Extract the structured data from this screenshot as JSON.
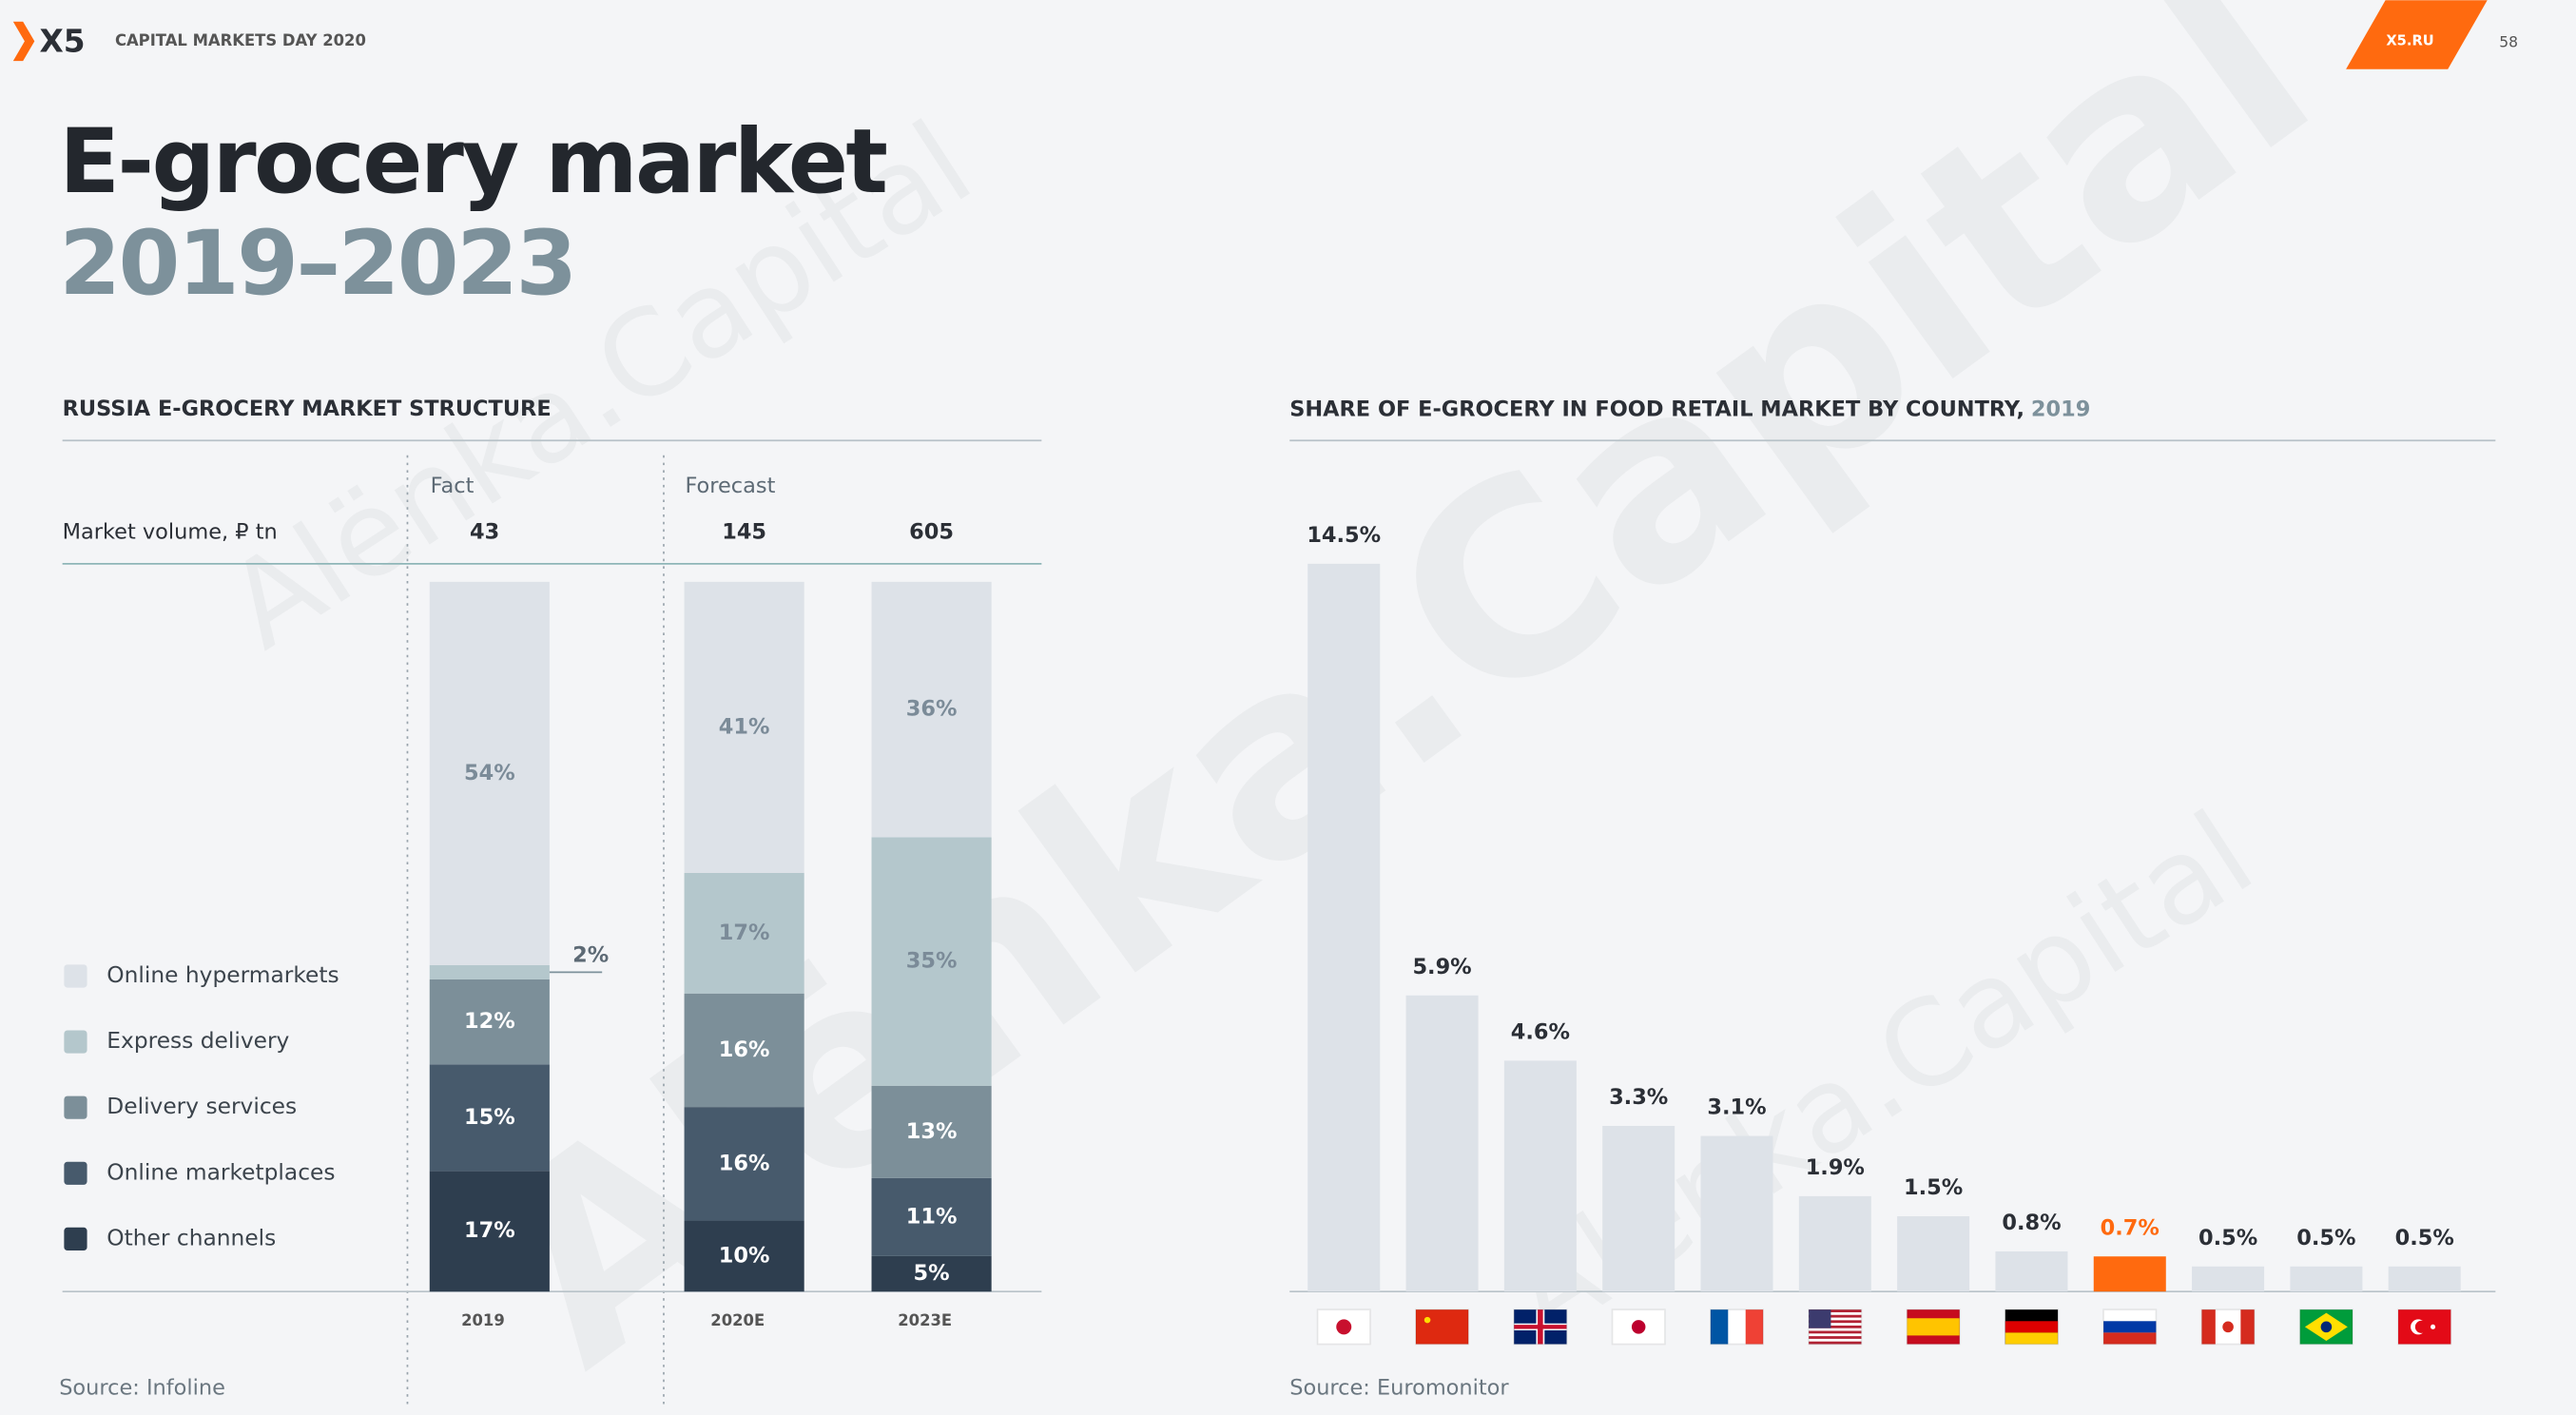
{
  "header": {
    "logo": "X5",
    "event": "CAPITAL MARKETS DAY 2020",
    "site": "X5.RU",
    "page": "58",
    "title": "E-grocery market",
    "subtitle": "2019–2023",
    "watermark": "Alёnka.Capital"
  },
  "chart_data": [
    {
      "type": "stacked_bar",
      "title": "RUSSIA E-GROCERY MARKET STRUCTURE",
      "fact_label": "Fact",
      "forecast_label": "Forecast",
      "volume_label": "Market volume, ₽ tn",
      "volume_values": [
        43,
        145,
        605
      ],
      "categories": [
        "2019",
        "2020E",
        "2023E"
      ],
      "series": [
        {
          "name": "Other channels",
          "color": "#2e3e4f",
          "values": [
            17,
            10,
            5
          ],
          "value_labels": [
            "17%",
            "10%",
            "5%"
          ]
        },
        {
          "name": "Online marketplaces",
          "color": "#475a6c",
          "values": [
            15,
            16,
            11
          ],
          "value_labels": [
            "15%",
            "16%",
            "11%"
          ]
        },
        {
          "name": "Delivery services",
          "color": "#7c8f99",
          "values": [
            12,
            16,
            13
          ],
          "value_labels": [
            "12%",
            "16%",
            "13%"
          ]
        },
        {
          "name": "Express delivery",
          "color": "#b4c7cc",
          "values": [
            2,
            17,
            35
          ],
          "value_labels": [
            "2%",
            "17%",
            "35%"
          ]
        },
        {
          "name": "Online hypermarkets",
          "color": "#dde2e8",
          "values": [
            54,
            41,
            36
          ],
          "value_labels": [
            "54%",
            "41%",
            "36%"
          ]
        }
      ],
      "source": "Source: Infoline"
    },
    {
      "type": "bar",
      "title": "SHARE OF E-GROCERY IN FOOD RETAIL MARKET BY COUNTRY,",
      "subtitle": "2019",
      "categories": [
        null,
        null,
        null,
        null,
        null,
        null,
        null,
        null,
        null,
        null,
        null,
        null
      ],
      "values": [
        14.5,
        5.9,
        4.6,
        3.3,
        3.1,
        1.9,
        1.5,
        0.8,
        0.7,
        0.5,
        0.5,
        0.5
      ],
      "value_labels": [
        "14.5%",
        "5.9%",
        "4.6%",
        "3.3%",
        "3.1%",
        "1.9%",
        "1.5%",
        "0.8%",
        "0.7%",
        "0.5%",
        "0.5%",
        "0.5%"
      ],
      "colors": [
        "#dde2e8",
        "#dde2e8",
        "#dde2e8",
        "#dde2e8",
        "#dde2e8",
        "#dde2e8",
        "#dde2e8",
        "#dde2e8",
        "#ff6a0f",
        "#dde2e8",
        "#dde2e8",
        "#dde2e8"
      ],
      "label_colors": [
        "#2b2f36",
        "#2b2f36",
        "#2b2f36",
        "#2b2f36",
        "#2b2f36",
        "#2b2f36",
        "#2b2f36",
        "#2b2f36",
        "#ff6a0f",
        "#2b2f36",
        "#2b2f36",
        "#2b2f36"
      ],
      "source": "Source: Euromonitor"
    }
  ]
}
